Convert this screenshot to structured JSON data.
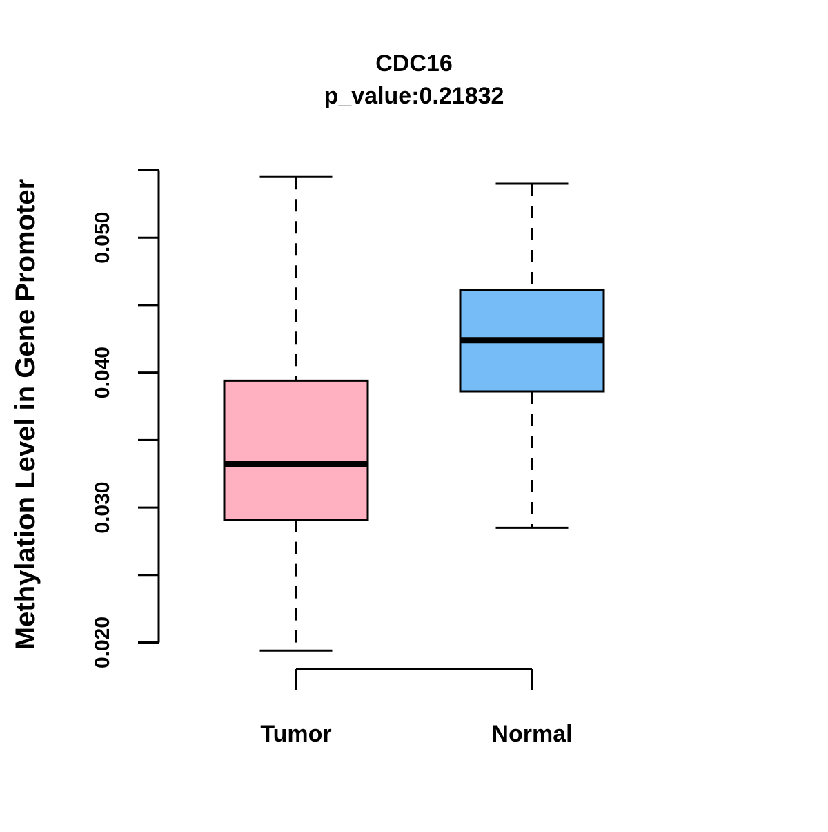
{
  "page": {
    "background": "#ffffff"
  },
  "chart_data": {
    "type": "boxplot",
    "title": "CDC16",
    "subtitle": "p_value:0.21832",
    "ylabel": "Methylation Level in Gene Promoter",
    "xlabel": "",
    "categories": [
      "Tumor",
      "Normal"
    ],
    "series": [
      {
        "name": "Tumor",
        "whisker_low": 0.0194,
        "q1": 0.0291,
        "median": 0.0332,
        "q3": 0.0394,
        "whisker_high": 0.0545,
        "fill_color": "#FFB1C1"
      },
      {
        "name": "Normal",
        "whisker_low": 0.0285,
        "q1": 0.0386,
        "median": 0.0424,
        "q3": 0.0461,
        "whisker_high": 0.054,
        "fill_color": "#76BCF7"
      }
    ],
    "ylim": [
      0.02,
      0.055
    ],
    "ytick_step": 0.005,
    "ytick_labels": [
      "0.020",
      "0.030",
      "0.040",
      "0.050"
    ],
    "grid": "off",
    "legend": "none",
    "stroke_color": "#000000",
    "whisker_style": "dashed"
  }
}
